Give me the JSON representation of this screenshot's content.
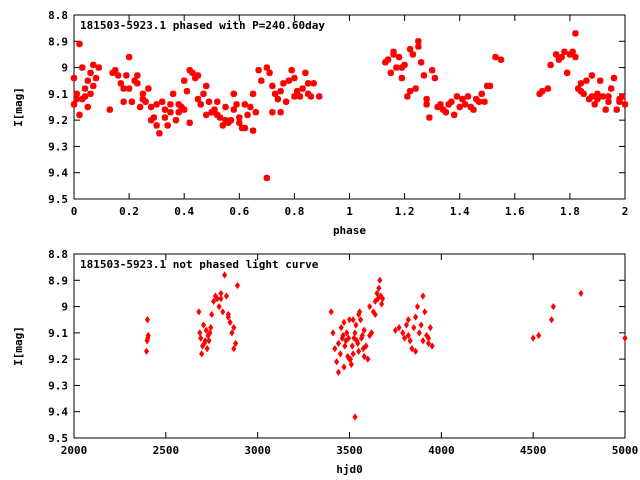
{
  "chart_data": [
    {
      "type": "scatter",
      "title": "181503-5923.1 phased with P=240.60day",
      "xlabel": "phase",
      "ylabel": "I[mag]",
      "xlim": [
        0,
        2
      ],
      "ylim": [
        8.8,
        9.5
      ],
      "y_inverted": true,
      "xticks": [
        "0",
        "0.2",
        "0.4",
        "0.6",
        "0.8",
        "1",
        "1.2",
        "1.4",
        "1.6",
        "1.8",
        "2"
      ],
      "yticks": [
        "8.8",
        "8.9",
        "9",
        "9.1",
        "9.2",
        "9.3",
        "9.4",
        "9.5"
      ],
      "marker": "star",
      "color": "#ff0000",
      "grid": false,
      "series": [
        {
          "x": [
            0.0,
            0.01,
            0.02,
            0.03,
            0.04,
            0.05,
            0.06,
            0.07,
            0.08,
            0.09,
            0.02,
            0.03,
            0.05,
            0.06,
            0.04,
            0.07,
            0.0,
            0.01,
            0.14,
            0.15,
            0.16,
            0.17,
            0.18,
            0.19,
            0.2,
            0.21,
            0.22,
            0.23,
            0.24,
            0.25,
            0.26,
            0.27,
            0.28,
            0.29,
            0.3,
            0.31,
            0.32,
            0.33,
            0.34,
            0.35,
            0.36,
            0.37,
            0.38,
            0.39,
            0.4,
            0.41,
            0.42,
            0.43,
            0.44,
            0.45,
            0.46,
            0.47,
            0.48,
            0.49,
            0.5,
            0.51,
            0.52,
            0.53,
            0.54,
            0.55,
            0.56,
            0.57,
            0.58,
            0.59,
            0.6,
            0.61,
            0.62,
            0.63,
            0.64,
            0.65,
            0.66,
            0.67,
            0.68,
            0.7,
            0.71,
            0.72,
            0.73,
            0.74,
            0.75,
            0.76,
            0.77,
            0.78,
            0.79,
            0.8,
            0.81,
            0.82,
            0.83,
            0.84,
            0.85,
            0.86,
            0.87,
            0.89,
            0.2,
            0.25,
            0.3,
            0.35,
            0.4,
            0.45,
            0.5,
            0.55,
            0.6,
            0.65,
            0.7,
            0.75,
            0.8,
            0.85,
            0.72,
            0.62,
            0.58,
            0.52,
            0.48,
            0.42,
            0.38,
            0.33,
            0.28,
            0.23,
            0.18,
            0.13,
            1.13,
            1.14,
            1.15,
            1.16,
            1.17,
            1.18,
            1.19,
            1.2,
            1.21,
            1.22,
            1.23,
            1.24,
            1.25,
            1.26,
            1.27,
            1.28,
            1.29,
            1.3,
            1.31,
            1.32,
            1.33,
            1.34,
            1.35,
            1.36,
            1.37,
            1.38,
            1.39,
            1.4,
            1.41,
            1.42,
            1.43,
            1.44,
            1.45,
            1.46,
            1.47,
            1.48,
            1.49,
            1.5,
            1.51,
            1.53,
            1.55,
            1.69,
            1.7,
            1.72,
            1.73,
            1.75,
            1.76,
            1.77,
            1.78,
            1.79,
            1.8,
            1.81,
            1.82,
            1.83,
            1.84,
            1.85,
            1.86,
            1.87,
            1.88,
            1.89,
            1.9,
            1.91,
            1.92,
            1.93,
            1.94,
            1.95,
            1.96,
            1.97,
            1.98,
            1.99,
            2.0,
            1.16,
            1.19,
            1.22,
            1.25,
            1.28,
            1.82,
            1.88,
            1.94,
            1.98,
            1.84,
            1.9
          ],
          "y": [
            9.14,
            9.1,
            8.91,
            9.12,
            9.08,
            9.05,
            9.02,
            9.07,
            9.04,
            9.0,
            9.18,
            9.0,
            9.15,
            9.1,
            9.11,
            8.99,
            9.04,
            9.12,
            9.02,
            9.01,
            9.03,
            9.06,
            9.08,
            9.03,
            8.96,
            9.13,
            9.05,
            9.03,
            9.15,
            9.1,
            9.13,
            9.08,
            9.2,
            9.19,
            9.22,
            9.25,
            9.13,
            9.16,
            9.22,
            9.14,
            9.1,
            9.2,
            9.14,
            9.15,
            9.05,
            9.09,
            9.01,
            9.02,
            9.04,
            9.03,
            9.14,
            9.1,
            9.07,
            9.13,
            9.17,
            9.16,
            9.18,
            9.19,
            9.22,
            9.15,
            9.21,
            9.2,
            9.16,
            9.14,
            9.19,
            9.23,
            9.23,
            9.18,
            9.15,
            9.1,
            9.17,
            9.01,
            9.05,
            9.0,
            9.02,
            9.07,
            9.1,
            9.12,
            9.09,
            9.06,
            9.13,
            9.05,
            9.01,
            9.04,
            9.09,
            9.11,
            9.08,
            9.02,
            9.06,
            9.11,
            9.06,
            9.11,
            9.08,
            9.12,
            9.14,
            9.17,
            9.16,
            9.12,
            9.17,
            9.2,
            9.21,
            9.24,
            9.42,
            9.17,
            9.11,
            9.1,
            9.17,
            9.14,
            9.1,
            9.13,
            9.18,
            9.21,
            9.17,
            9.19,
            9.15,
            9.06,
            9.13,
            9.16,
            8.98,
            8.97,
            9.02,
            8.94,
            9.0,
            8.96,
            9.04,
            8.99,
            9.11,
            8.93,
            8.95,
            9.08,
            8.9,
            8.98,
            9.03,
            9.12,
            9.19,
            9.01,
            9.04,
            9.15,
            9.14,
            9.16,
            9.17,
            9.14,
            9.13,
            9.18,
            9.11,
            9.15,
            9.12,
            9.14,
            9.11,
            9.15,
            9.16,
            9.12,
            9.13,
            9.1,
            9.13,
            9.07,
            9.07,
            8.96,
            8.97,
            9.1,
            9.09,
            9.08,
            8.99,
            8.95,
            8.97,
            8.96,
            8.94,
            9.02,
            8.95,
            8.94,
            8.87,
            9.08,
            9.06,
            9.1,
            9.05,
            9.12,
            9.11,
            9.14,
            9.12,
            9.05,
            9.11,
            9.16,
            9.13,
            9.08,
            9.04,
            9.16,
            9.12,
            9.11,
            9.14,
            8.95,
            9.0,
            9.09,
            8.92,
            9.14,
            8.96,
            9.03,
            9.11,
            9.13,
            9.09,
            9.1
          ]
        }
      ]
    },
    {
      "type": "scatter",
      "title": "181503-5923.1 not phased light curve",
      "xlabel": "hjd0",
      "ylabel": "I[mag]",
      "xlim": [
        2000,
        5000
      ],
      "ylim": [
        8.8,
        9.5
      ],
      "y_inverted": true,
      "xticks": [
        "2000",
        "2500",
        "3000",
        "3500",
        "4000",
        "4500",
        "5000"
      ],
      "yticks": [
        "8.8",
        "8.9",
        "9",
        "9.1",
        "9.2",
        "9.3",
        "9.4",
        "9.5"
      ],
      "marker": "diamond",
      "color": "#ff0000",
      "grid": false,
      "series": [
        {
          "x": [
            2395,
            2398,
            2400,
            2402,
            2404,
            2680,
            2685,
            2690,
            2695,
            2700,
            2705,
            2710,
            2715,
            2720,
            2725,
            2730,
            2735,
            2740,
            2745,
            2750,
            2760,
            2770,
            2780,
            2790,
            2800,
            2810,
            2820,
            2830,
            2840,
            2850,
            2860,
            2870,
            2880,
            2890,
            2780,
            2800,
            2840,
            2870,
            3400,
            3410,
            3420,
            3430,
            3440,
            3450,
            3455,
            3460,
            3465,
            3470,
            3475,
            3480,
            3485,
            3490,
            3495,
            3500,
            3505,
            3510,
            3515,
            3520,
            3525,
            3530,
            3535,
            3540,
            3545,
            3550,
            3555,
            3560,
            3565,
            3570,
            3575,
            3580,
            3590,
            3600,
            3610,
            3620,
            3630,
            3640,
            3650,
            3655,
            3660,
            3665,
            3670,
            3675,
            3680,
            3440,
            3470,
            3500,
            3520,
            3550,
            3580,
            3610,
            3640,
            3530,
            3750,
            3770,
            3790,
            3800,
            3810,
            3820,
            3830,
            3840,
            3850,
            3860,
            3870,
            3880,
            3890,
            3900,
            3910,
            3920,
            3930,
            3940,
            3950,
            3820,
            3860,
            3900,
            3930,
            4500,
            4530,
            4600,
            4610,
            4760,
            5000
          ],
          "y": [
            9.17,
            9.13,
            9.05,
            9.12,
            9.11,
            9.02,
            9.1,
            9.12,
            9.18,
            9.15,
            9.07,
            9.14,
            9.13,
            9.09,
            9.16,
            9.11,
            9.13,
            9.1,
            9.08,
            9.03,
            8.98,
            8.96,
            8.97,
            9.0,
            8.97,
            9.02,
            8.88,
            8.96,
            9.04,
            9.06,
            9.1,
            9.16,
            9.14,
            8.92,
            8.97,
            8.95,
            9.03,
            9.08,
            9.02,
            9.1,
            9.16,
            9.21,
            9.14,
            9.18,
            9.08,
            9.12,
            9.11,
            9.06,
            9.15,
            9.13,
            9.1,
            9.19,
            9.12,
            9.05,
            9.2,
            9.22,
            9.15,
            9.18,
            9.12,
            9.1,
            9.07,
            9.13,
            9.14,
            9.17,
            9.02,
            9.05,
            9.12,
            9.11,
            9.16,
            9.19,
            9.15,
            9.2,
            9.11,
            9.1,
            9.02,
            8.98,
            8.95,
            8.97,
            8.93,
            8.9,
            8.96,
            8.99,
            8.97,
            9.25,
            9.23,
            9.2,
            9.05,
            9.03,
            9.09,
            9.0,
            9.03,
            9.42,
            9.09,
            9.08,
            9.1,
            9.12,
            9.07,
            9.11,
            9.13,
            9.16,
            9.08,
            9.04,
            9.0,
            9.1,
            9.07,
            9.13,
            9.02,
            9.11,
            9.14,
            9.08,
            9.15,
            9.05,
            9.17,
            8.96,
            9.12,
            9.12,
            9.11,
            9.05,
            9.0,
            8.95,
            9.12
          ]
        }
      ]
    }
  ]
}
